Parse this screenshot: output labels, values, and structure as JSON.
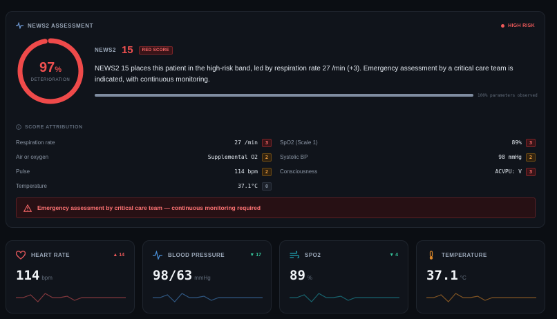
{
  "assessment": {
    "title": "NEWS2 ASSESSMENT",
    "risk_flag": "HIGH RISK",
    "gauge": {
      "value": "97",
      "unit": "%",
      "label": "DETERIORATION",
      "fraction": 0.97
    },
    "score_label": "NEWS2",
    "score_value": "15",
    "score_badge": "RED SCORE",
    "summary": "NEWS2 15 places this patient in the high-risk band, led by respiration rate 27 /min (+3). Emergency assessment by a critical care team is indicated, with continuous monitoring.",
    "progress_fraction": 1.0,
    "progress_label": "100% parameters observed",
    "attribution_title": "SCORE ATTRIBUTION",
    "parameters": [
      {
        "name": "Respiration rate",
        "value": "27 /min",
        "score": "3"
      },
      {
        "name": "SpO2 (Scale 1)",
        "value": "89%",
        "score": "3"
      },
      {
        "name": "Air or oxygen",
        "value": "Supplemental O2",
        "score": "2"
      },
      {
        "name": "Systolic BP",
        "value": "98 mmHg",
        "score": "2"
      },
      {
        "name": "Pulse",
        "value": "114 bpm",
        "score": "2"
      },
      {
        "name": "Consciousness",
        "value": "ACVPU: V",
        "score": "3"
      },
      {
        "name": "Temperature",
        "value": "37.1°C",
        "score": "0"
      }
    ],
    "alert": "Emergency assessment by critical care team — continuous monitoring required"
  },
  "vitals": [
    {
      "title": "HEART RATE",
      "icon": "heart-icon",
      "trend": "▲ 14",
      "trend_dir": "up",
      "value": "114",
      "unit": "bpm",
      "color": "#e0565a",
      "spark": [
        0.5,
        0.5,
        0.3,
        0.8,
        0.2,
        0.5,
        0.5,
        0.4,
        0.7,
        0.5,
        0.5,
        0.5,
        0.5,
        0.5,
        0.5,
        0.5
      ]
    },
    {
      "title": "BLOOD PRESSURE",
      "icon": "pulse-icon",
      "trend": "▼ 17",
      "trend_dir": "down",
      "value": "98/63",
      "unit": "mmHg",
      "color": "#4a90d9",
      "spark": [
        0.5,
        0.5,
        0.3,
        0.8,
        0.2,
        0.5,
        0.5,
        0.4,
        0.7,
        0.5,
        0.5,
        0.5,
        0.5,
        0.5,
        0.5,
        0.5
      ]
    },
    {
      "title": "SPO2",
      "icon": "wind-icon",
      "trend": "▼ 4",
      "trend_dir": "down",
      "value": "89",
      "unit": "%",
      "color": "#1fa5b5",
      "spark": [
        0.5,
        0.5,
        0.3,
        0.8,
        0.2,
        0.5,
        0.5,
        0.4,
        0.7,
        0.5,
        0.5,
        0.5,
        0.5,
        0.5,
        0.5,
        0.5
      ]
    },
    {
      "title": "TEMPERATURE",
      "icon": "thermometer-icon",
      "trend": "",
      "trend_dir": "",
      "value": "37.1",
      "unit": "°C",
      "color": "#e08a2a",
      "spark": [
        0.5,
        0.5,
        0.3,
        0.8,
        0.2,
        0.5,
        0.5,
        0.4,
        0.7,
        0.5,
        0.5,
        0.5,
        0.5,
        0.5,
        0.5,
        0.5
      ]
    }
  ]
}
